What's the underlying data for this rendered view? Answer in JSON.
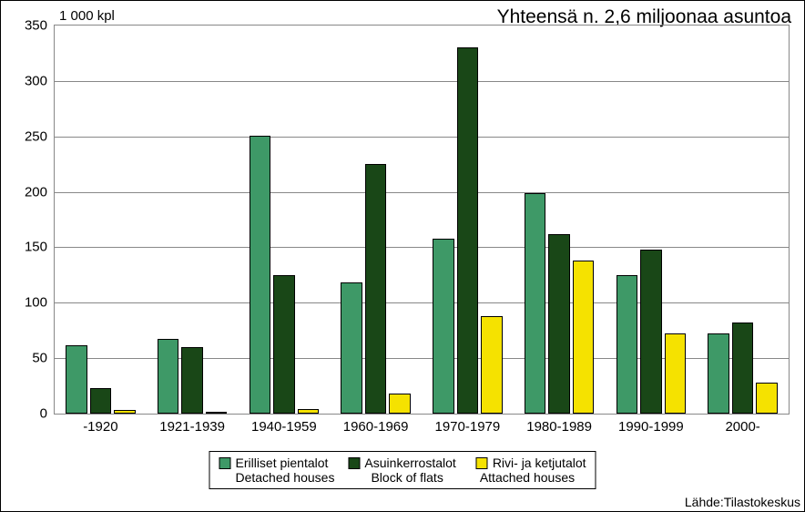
{
  "title": "Yhteensä n. 2,6 miljoonaa asuntoa",
  "y_unit_label": "1 000 kpl",
  "chart": {
    "type": "bar",
    "background_color": "#ffffff",
    "grid_color": "#888888",
    "border_color": "#888888",
    "categories": [
      "-1920",
      "1921-1939",
      "1940-1959",
      "1960-1969",
      "1970-1979",
      "1980-1989",
      "1990-1999",
      "2000-"
    ],
    "series": [
      {
        "key": "detached",
        "label_fi": "Erilliset pientalot",
        "label_en": "Detached houses",
        "color": "#3e9967",
        "values": [
          62,
          67,
          251,
          118,
          158,
          199,
          125,
          72
        ]
      },
      {
        "key": "flats",
        "label_fi": "Asuinkerrostalot",
        "label_en": "Block of flats",
        "color": "#194717",
        "values": [
          23,
          60,
          125,
          225,
          330,
          162,
          148,
          82
        ]
      },
      {
        "key": "attached",
        "label_fi": "Rivi- ja ketjutalot",
        "label_en": "Attached houses",
        "color": "#f5e200",
        "values": [
          3,
          2,
          4,
          18,
          88,
          138,
          72,
          28
        ]
      }
    ],
    "ylim": [
      0,
      350
    ],
    "ytick_step": 50,
    "bar_border_color": "#000000",
    "title_fontsize": 21,
    "axis_fontsize": 15,
    "legend_fontsize": 14,
    "group_inner_gap_ratio": 0.03,
    "group_outer_pad_ratio": 0.12
  },
  "source_label": "Lähde:Tilastokeskus"
}
